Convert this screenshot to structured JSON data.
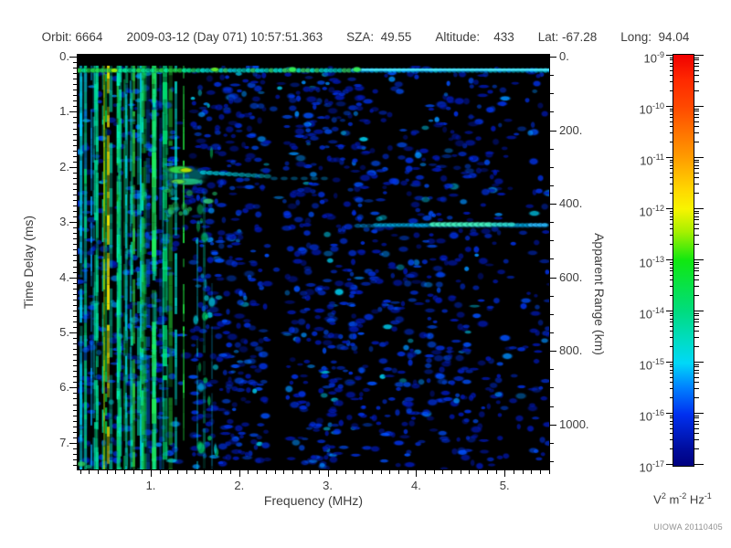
{
  "header": {
    "fields": [
      "Orbit: 6664",
      "2009-03-12 (Day 071) 10:57:51.363",
      "SZA:  49.55",
      "Altitude:    433",
      "Lat: -67.28",
      "Long:  94.04"
    ]
  },
  "axes": {
    "x": {
      "label": "Frequency (MHz)",
      "tick_labels": [
        "1.",
        "2.",
        "3.",
        "4.",
        "5."
      ],
      "tick_values": [
        1,
        2,
        3,
        4,
        5
      ]
    },
    "y_left": {
      "label": "Time Delay (ms)",
      "tick_labels": [
        "0.",
        "1.",
        "2.",
        "3.",
        "4.",
        "5.",
        "6.",
        "7."
      ],
      "tick_values": [
        0,
        1,
        2,
        3,
        4,
        5,
        6,
        7
      ]
    },
    "y_right": {
      "label": "Apparent Range (km)",
      "tick_labels": [
        "0.",
        "200.",
        "400.",
        "600.",
        "800.",
        "1000."
      ],
      "tick_values": [
        0,
        200,
        400,
        600,
        800,
        1000
      ]
    }
  },
  "colorbar": {
    "base": "10",
    "tick_exponents": [
      -9,
      -10,
      -11,
      -12,
      -13,
      -14,
      -15,
      -16,
      -17
    ],
    "unit_parts": [
      {
        "t": "V",
        "sup": "2"
      },
      {
        "t": " m",
        "sup": "-2"
      },
      {
        "t": " Hz",
        "sup": "-1"
      }
    ]
  },
  "watermark": "UIOWA 20110405",
  "chart_data": {
    "type": "heatmap",
    "title": "",
    "xlabel": "Frequency (MHz)",
    "ylabel": "Time Delay (ms)",
    "y2label": "Apparent Range (km)",
    "x_range": [
      0.17,
      5.5
    ],
    "y_range": [
      0.0,
      7.5
    ],
    "y2_range": [
      0,
      1125
    ],
    "x_ticks": [
      1,
      2,
      3,
      4,
      5
    ],
    "y_ticks": [
      0,
      1,
      2,
      3,
      4,
      5,
      6,
      7
    ],
    "y2_ticks": [
      0,
      200,
      400,
      600,
      800,
      1000
    ],
    "grid": false,
    "colorbar": {
      "scale": "log",
      "min": 1e-17,
      "max": 1e-09,
      "unit": "V^2 m^-2 Hz^-1",
      "decade_ticks": [
        -9,
        -10,
        -11,
        -12,
        -13,
        -14,
        -15,
        -16,
        -17
      ],
      "colormap": [
        "#000080",
        "#0030f0",
        "#00d8f8",
        "#00dc80",
        "#10e810",
        "#f8f400",
        "#ff9c00",
        "#f00000"
      ]
    },
    "palette": {
      "background": "#000000",
      "noise_blue_deep": "#0018b0",
      "noise_blue": "#0030e0",
      "noise_cyan": "#00b0ff",
      "stripe_green": "#00dd55",
      "stripe_yellow": "#eedd00",
      "echo_core": "#bbdd00"
    },
    "features": [
      {
        "name": "receiver-noise-band",
        "freq_mhz": [
          0.17,
          5.5
        ],
        "time_delay_ms": 0.25
      },
      {
        "name": "plasma-harmonic-stripes",
        "freq_mhz": [
          0.17,
          1.33
        ],
        "time_delay_ms": [
          0.2,
          7.5
        ]
      },
      {
        "name": "stripe-gap",
        "freq_mhz": [
          1.33,
          1.47
        ]
      },
      {
        "name": "ionospheric-echo-cusp",
        "freq_mhz": [
          1.2,
          1.9
        ],
        "time_delay_ms": 2.1
      },
      {
        "name": "ionospheric-echo-tail",
        "freq_mhz": [
          1.9,
          3.0
        ],
        "time_delay_ms": 2.25
      },
      {
        "name": "secondary-echo-blob",
        "freq_mhz": 1.65,
        "time_delay_ms": 2.62
      },
      {
        "name": "attenuation-gap",
        "freq_mhz": [
          2.32,
          2.53
        ]
      },
      {
        "name": "sparse-column",
        "freq_mhz": [
          5.04,
          5.31
        ]
      },
      {
        "name": "surface-reflection",
        "freq_mhz": [
          3.55,
          5.5
        ],
        "time_delay_ms": 3.05,
        "apparent_range_km": 458,
        "bright_freq_mhz": [
          4.2,
          4.85
        ]
      }
    ]
  }
}
